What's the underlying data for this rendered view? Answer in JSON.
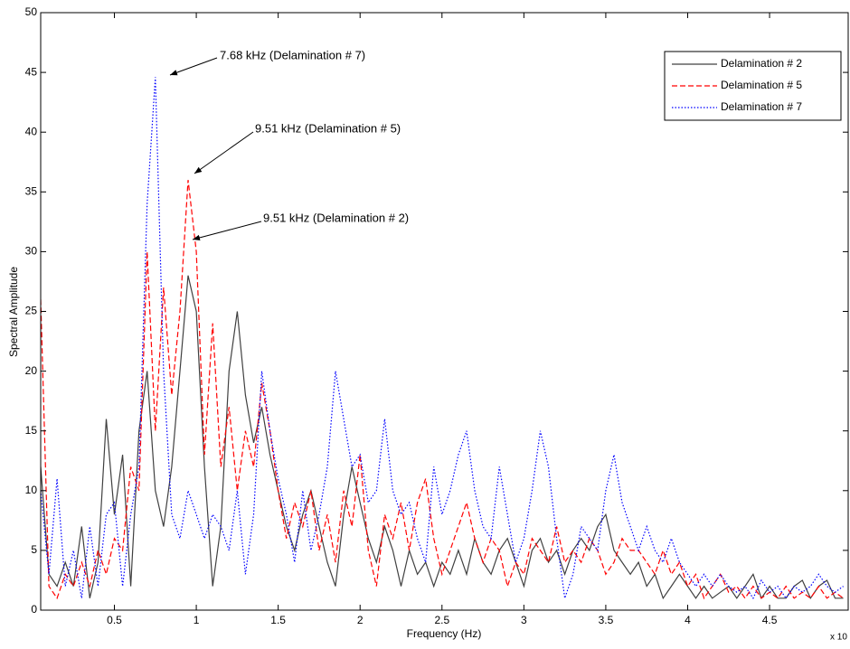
{
  "chart_data": {
    "type": "line",
    "xlabel": "Frequency (Hz)",
    "ylabel": "Spectral Amplitude",
    "x_exponent_label": "x 10",
    "xlim": [
      0.05,
      4.98
    ],
    "ylim": [
      0,
      50
    ],
    "xticks": [
      0.5,
      1,
      1.5,
      2,
      2.5,
      3,
      3.5,
      4,
      4.5
    ],
    "yticks": [
      0,
      5,
      10,
      15,
      20,
      25,
      30,
      35,
      40,
      45,
      50
    ],
    "grid": false,
    "legend": "upper right",
    "annotations": [
      "7.68 kHz (Delamination # 7)",
      "9.51 kHz (Delamination # 5)",
      "9.51 kHz (Delamination # 2)"
    ],
    "x": [
      0.05,
      0.1,
      0.15,
      0.2,
      0.25,
      0.3,
      0.35,
      0.4,
      0.45,
      0.5,
      0.55,
      0.6,
      0.65,
      0.7,
      0.75,
      0.8,
      0.85,
      0.9,
      0.95,
      1.0,
      1.05,
      1.1,
      1.15,
      1.2,
      1.25,
      1.3,
      1.35,
      1.4,
      1.45,
      1.5,
      1.55,
      1.6,
      1.65,
      1.7,
      1.75,
      1.8,
      1.85,
      1.9,
      1.95,
      2.0,
      2.05,
      2.1,
      2.15,
      2.2,
      2.25,
      2.3,
      2.35,
      2.4,
      2.45,
      2.5,
      2.55,
      2.6,
      2.65,
      2.7,
      2.75,
      2.8,
      2.85,
      2.9,
      2.95,
      3.0,
      3.05,
      3.1,
      3.15,
      3.2,
      3.25,
      3.3,
      3.35,
      3.4,
      3.45,
      3.5,
      3.55,
      3.6,
      3.65,
      3.7,
      3.75,
      3.8,
      3.85,
      3.9,
      3.95,
      4.0,
      4.05,
      4.1,
      4.15,
      4.2,
      4.25,
      4.3,
      4.35,
      4.4,
      4.45,
      4.5,
      4.55,
      4.6,
      4.65,
      4.7,
      4.75,
      4.8,
      4.85,
      4.9,
      4.95
    ],
    "series": [
      {
        "name": "Delamination # 2",
        "color": "#404040",
        "dash": "solid",
        "values": [
          12,
          3,
          2,
          4,
          2,
          7,
          1,
          4,
          16,
          8,
          13,
          2,
          15,
          20,
          10,
          7,
          12,
          20,
          28,
          25,
          12,
          2,
          7,
          20,
          25,
          18,
          14,
          17,
          13,
          10,
          7,
          5,
          8,
          10,
          7,
          4,
          2,
          8,
          12,
          9,
          6,
          4,
          7,
          5,
          2,
          5,
          3,
          4,
          2,
          4,
          3,
          5,
          3,
          6,
          4,
          3,
          5,
          6,
          4,
          2,
          5,
          6,
          4,
          5,
          3,
          5,
          6,
          5,
          7,
          8,
          5,
          4,
          3,
          4,
          2,
          3,
          1,
          2,
          3,
          2,
          1,
          2,
          1,
          1.5,
          2,
          1,
          2,
          3,
          1,
          2,
          1,
          1,
          2,
          2.5,
          1,
          2,
          2.5,
          1,
          1
        ]
      },
      {
        "name": "Delamination # 5",
        "color": "#ff0000",
        "dash": "dashed",
        "values": [
          26,
          2,
          1,
          3,
          2,
          4,
          2,
          5,
          3,
          6,
          5,
          12,
          10,
          30,
          15,
          27,
          18,
          25,
          36,
          30,
          13,
          24,
          12,
          17,
          10,
          15,
          12,
          19,
          15,
          10,
          6,
          9,
          7,
          10,
          5,
          8,
          4,
          10,
          7,
          13,
          5,
          2,
          8,
          6,
          9,
          5,
          9,
          11,
          6,
          3,
          5,
          7,
          9,
          6,
          4,
          6,
          5,
          2,
          4,
          3,
          6,
          5,
          4,
          7,
          4,
          5,
          4,
          6,
          5,
          3,
          4,
          6,
          5,
          5,
          4,
          3,
          5,
          3,
          4,
          2,
          3,
          1,
          2,
          3,
          1.5,
          2,
          1,
          2,
          1,
          1.5,
          1,
          2,
          1,
          1.5,
          1,
          2,
          1,
          1.5,
          1
        ]
      },
      {
        "name": "Delamination # 7",
        "color": "#0000ff",
        "dash": "dotted",
        "values": [
          10,
          3,
          11,
          2,
          5,
          1,
          7,
          2,
          8,
          9,
          2,
          8,
          12,
          34,
          44.6,
          20,
          8,
          6,
          10,
          8,
          6,
          8,
          7,
          5,
          10,
          3,
          8,
          20,
          15,
          11,
          8,
          4,
          10,
          5,
          8,
          12,
          20,
          16,
          12,
          13,
          9,
          10,
          16,
          10,
          8,
          9,
          6,
          4,
          12,
          8,
          10,
          13,
          15,
          10,
          7,
          6,
          12,
          8,
          4,
          6,
          10,
          15,
          12,
          6,
          1,
          3,
          7,
          6,
          5,
          10,
          13,
          9,
          7,
          5,
          7,
          5,
          4,
          6,
          4,
          3,
          2,
          3,
          2,
          3,
          2,
          1.5,
          2,
          1,
          2.5,
          1.5,
          2,
          1,
          2,
          1.5,
          2,
          3,
          2,
          1.5,
          2
        ]
      }
    ]
  }
}
